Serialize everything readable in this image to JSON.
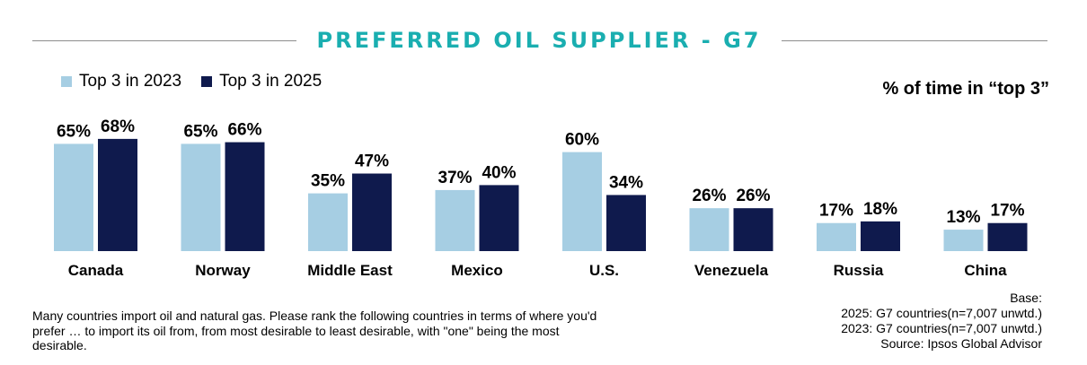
{
  "title": "PREFERRED OIL SUPPLIER - G7",
  "colors": {
    "series_2023": "#a6cee3",
    "series_2025": "#0f1a4d",
    "title": "#1aaeb0"
  },
  "chart_data": {
    "type": "bar",
    "title": "PREFERRED OIL SUPPLIER - G7",
    "ylabel": "% of time in “top 3”",
    "categories": [
      "Canada",
      "Norway",
      "Middle East",
      "Mexico",
      "U.S.",
      "Venezuela",
      "Russia",
      "China"
    ],
    "series": [
      {
        "name": "Top 3 in 2023",
        "values": [
          65,
          65,
          35,
          37,
          60,
          26,
          17,
          13
        ],
        "labels": [
          "65%",
          "65%",
          "35%",
          "37%",
          "60%",
          "26%",
          "17%",
          "13%"
        ]
      },
      {
        "name": "Top 3 in 2025",
        "values": [
          68,
          66,
          47,
          40,
          34,
          26,
          18,
          17
        ],
        "labels": [
          "68%",
          "66%",
          "47%",
          "40%",
          "34%",
          "26%",
          "18%",
          "17%"
        ]
      }
    ],
    "ylim": [
      0,
      100
    ],
    "grid": false,
    "legend": "top-left"
  },
  "question": "Many countries import oil and natural gas. Please rank the following countries in terms of where you'd prefer … to import its oil from, from most desirable to least desirable, with \"one\" being the most desirable.",
  "base": {
    "heading": "Base:",
    "line_2025": "2025: G7  countries(n=7,007 unwtd.)",
    "line_2023": "2023:  G7 countries(n=7,007 unwtd.)",
    "source": "Source:  Ipsos Global Advisor"
  }
}
